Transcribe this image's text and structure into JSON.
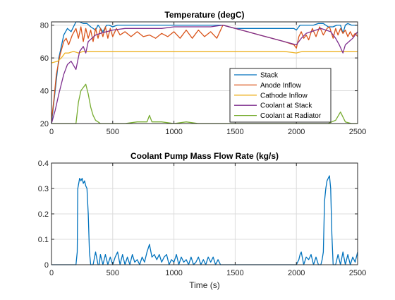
{
  "chart_data": [
    {
      "type": "line",
      "title": "Temperature (degC)",
      "xlabel": "",
      "ylabel": "",
      "xlim": [
        0,
        2500
      ],
      "ylim": [
        20,
        82
      ],
      "xticks": [
        "0",
        "500",
        "1000",
        "1500",
        "2000",
        "2500"
      ],
      "yticks": [
        "20",
        "40",
        "60",
        "80"
      ],
      "grid": true,
      "legend": "lower-right",
      "series": [
        {
          "name": "Stack",
          "color": "#0072BD",
          "x": [
            0,
            30,
            60,
            100,
            130,
            160,
            180,
            200,
            230,
            260,
            290,
            320,
            360,
            380,
            420,
            450,
            470,
            500,
            540,
            600,
            700,
            800,
            900,
            1000,
            1100,
            1200,
            1300,
            1400,
            1500,
            1600,
            1700,
            1800,
            1900,
            1980,
            2000,
            2030,
            2060,
            2100,
            2140,
            2180,
            2220,
            2260,
            2300,
            2330,
            2360,
            2380,
            2400,
            2420,
            2450,
            2480,
            2500
          ],
          "y": [
            20,
            40,
            60,
            74,
            78,
            76,
            79,
            82,
            82,
            81,
            81,
            79,
            77,
            80,
            76,
            80,
            80,
            79,
            80,
            80,
            80,
            80,
            80,
            80,
            80,
            80,
            80,
            80,
            78,
            78,
            78,
            78,
            78,
            78,
            77,
            80,
            80,
            80,
            80,
            81,
            81,
            79,
            79,
            80,
            80,
            75,
            80,
            81,
            80,
            80,
            80
          ]
        },
        {
          "name": "Anode Inflow",
          "color": "#D95319",
          "x": [
            0,
            20,
            40,
            70,
            100,
            120,
            140,
            170,
            200,
            220,
            240,
            260,
            280,
            300,
            320,
            340,
            360,
            380,
            400,
            420,
            440,
            460,
            480,
            500,
            530,
            560,
            600,
            650,
            700,
            750,
            800,
            850,
            900,
            950,
            1000,
            1050,
            1100,
            1150,
            1200,
            1250,
            1300,
            1350,
            1400,
            1500,
            1600,
            1700,
            1800,
            1900,
            1980,
            2000,
            2020,
            2040,
            2060,
            2080,
            2100,
            2130,
            2160,
            2190,
            2220,
            2250,
            2270,
            2300,
            2320,
            2340,
            2360,
            2380,
            2400,
            2420,
            2440,
            2460,
            2480,
            2500
          ],
          "y": [
            22,
            35,
            50,
            62,
            70,
            72,
            68,
            74,
            78,
            72,
            79,
            70,
            78,
            72,
            77,
            70,
            78,
            72,
            78,
            73,
            79,
            72,
            78,
            73,
            78,
            74,
            76,
            73,
            76,
            73,
            74,
            72,
            75,
            73,
            76,
            72,
            77,
            72,
            77,
            73,
            76,
            72,
            80,
            78,
            76,
            74,
            72,
            70,
            68,
            66,
            73,
            76,
            72,
            74,
            71,
            78,
            73,
            79,
            74,
            78,
            79,
            72,
            78,
            74,
            78,
            75,
            77,
            73,
            76,
            73,
            75,
            73
          ]
        },
        {
          "name": "Cathode Inflow",
          "color": "#EDB120",
          "x": [
            0,
            50,
            80,
            110,
            140,
            180,
            220,
            260,
            300,
            400,
            500,
            700,
            900,
            1100,
            1300,
            1500,
            1700,
            1900,
            2000,
            2050,
            2100,
            2200,
            2300,
            2400,
            2500
          ],
          "y": [
            57,
            58,
            60,
            63,
            63,
            64,
            63,
            64,
            64,
            64,
            64,
            64,
            64,
            64,
            64,
            64,
            64,
            64,
            63,
            64,
            64,
            64,
            64,
            64,
            64
          ]
        },
        {
          "name": "Coolant at Stack",
          "color": "#7E2F8E",
          "x": [
            0,
            30,
            60,
            100,
            130,
            160,
            200,
            230,
            260,
            280,
            300,
            330,
            360,
            400,
            450,
            500,
            600,
            700,
            800,
            900,
            1000,
            1100,
            1200,
            1300,
            1400,
            1500,
            1600,
            1700,
            1800,
            1900,
            2000,
            2040,
            2080,
            2120,
            2160,
            2200,
            2240,
            2280,
            2320,
            2350,
            2380,
            2400,
            2430,
            2460,
            2500
          ],
          "y": [
            20,
            28,
            38,
            50,
            56,
            58,
            53,
            64,
            67,
            63,
            70,
            72,
            74,
            75,
            76,
            77,
            78,
            78,
            78,
            78,
            79,
            79,
            79,
            79,
            80,
            78,
            76,
            74,
            72,
            70,
            68,
            72,
            75,
            76,
            77,
            78,
            77,
            76,
            72,
            68,
            63,
            68,
            70,
            72,
            76
          ]
        },
        {
          "name": "Coolant at Radiator",
          "color": "#77AC30",
          "x": [
            0,
            100,
            150,
            200,
            220,
            240,
            260,
            280,
            300,
            320,
            340,
            360,
            380,
            400,
            500,
            600,
            700,
            780,
            800,
            820,
            900,
            1000,
            1100,
            1200,
            1300,
            1400,
            1500,
            1600,
            1700,
            1800,
            1900,
            2000,
            2100,
            2150,
            2200,
            2230,
            2260,
            2290,
            2320,
            2360,
            2400,
            2450,
            2500
          ],
          "y": [
            20,
            20,
            20,
            20,
            33,
            40,
            42,
            44,
            38,
            30,
            25,
            22,
            21,
            20,
            20,
            20,
            21,
            21,
            25,
            21,
            21,
            20,
            21,
            20,
            20,
            20,
            20,
            20,
            20,
            20,
            20,
            20,
            20,
            20,
            20,
            20,
            20,
            21,
            22,
            27,
            21,
            20,
            20
          ]
        }
      ]
    },
    {
      "type": "line",
      "title": "Coolant Pump Mass Flow Rate (kg/s)",
      "xlabel": "Time (s)",
      "ylabel": "",
      "xlim": [
        0,
        2500
      ],
      "ylim": [
        0,
        0.4
      ],
      "xticks": [
        "0",
        "500",
        "1000",
        "1500",
        "2000",
        "2500"
      ],
      "yticks": [
        "0",
        "0.1",
        "0.2",
        "0.3",
        "0.4"
      ],
      "grid": true,
      "legend": "none",
      "series": [
        {
          "name": "",
          "color": "#0072BD",
          "x": [
            0,
            200,
            210,
            215,
            230,
            240,
            250,
            260,
            270,
            280,
            290,
            300,
            310,
            320,
            330,
            340,
            360,
            380,
            390,
            400,
            420,
            440,
            460,
            480,
            500,
            520,
            540,
            560,
            580,
            600,
            620,
            640,
            660,
            680,
            700,
            720,
            740,
            760,
            780,
            800,
            820,
            840,
            860,
            880,
            900,
            920,
            940,
            960,
            980,
            1000,
            1020,
            1040,
            1060,
            1080,
            1100,
            1120,
            1140,
            1160,
            1180,
            1200,
            1220,
            1240,
            1260,
            1280,
            1300,
            1320,
            1340,
            1360,
            1380,
            1400,
            1500,
            1600,
            1700,
            1800,
            1900,
            1980,
            2000,
            2020,
            2030,
            2040,
            2060,
            2080,
            2100,
            2120,
            2140,
            2160,
            2180,
            2200,
            2210,
            2220,
            2230,
            2240,
            2250,
            2260,
            2270,
            2280,
            2290,
            2300,
            2320,
            2340,
            2360,
            2380,
            2400,
            2420,
            2440,
            2460,
            2480,
            2500
          ],
          "y": [
            0,
            0,
            0.05,
            0.3,
            0.34,
            0.33,
            0.34,
            0.32,
            0.33,
            0.31,
            0.3,
            0.2,
            0.05,
            0,
            0,
            0,
            0.05,
            0,
            0,
            0.04,
            0,
            0.04,
            0,
            0.03,
            0,
            0.03,
            0.05,
            0,
            0.04,
            0,
            0.03,
            0,
            0.04,
            0.01,
            0.02,
            0,
            0.03,
            0.01,
            0.05,
            0.08,
            0.03,
            0.04,
            0.02,
            0.04,
            0.01,
            0.03,
            0.04,
            0,
            0.02,
            0.01,
            0.04,
            0,
            0.03,
            0.01,
            0.02,
            0,
            0.03,
            0,
            0.01,
            0.03,
            0,
            0.02,
            0,
            0.03,
            0.01,
            0.03,
            0,
            0.02,
            0,
            0,
            0,
            0,
            0,
            0,
            0,
            0,
            0,
            0.02,
            0.04,
            0.05,
            0,
            0.03,
            0.02,
            0.04,
            0,
            0.03,
            0,
            0,
            0.02,
            0.05,
            0.25,
            0.3,
            0.33,
            0.34,
            0.35,
            0.3,
            0.12,
            0,
            0,
            0.04,
            0,
            0.05,
            0,
            0.04,
            0,
            0.03,
            0.01,
            0.05
          ]
        }
      ]
    }
  ]
}
